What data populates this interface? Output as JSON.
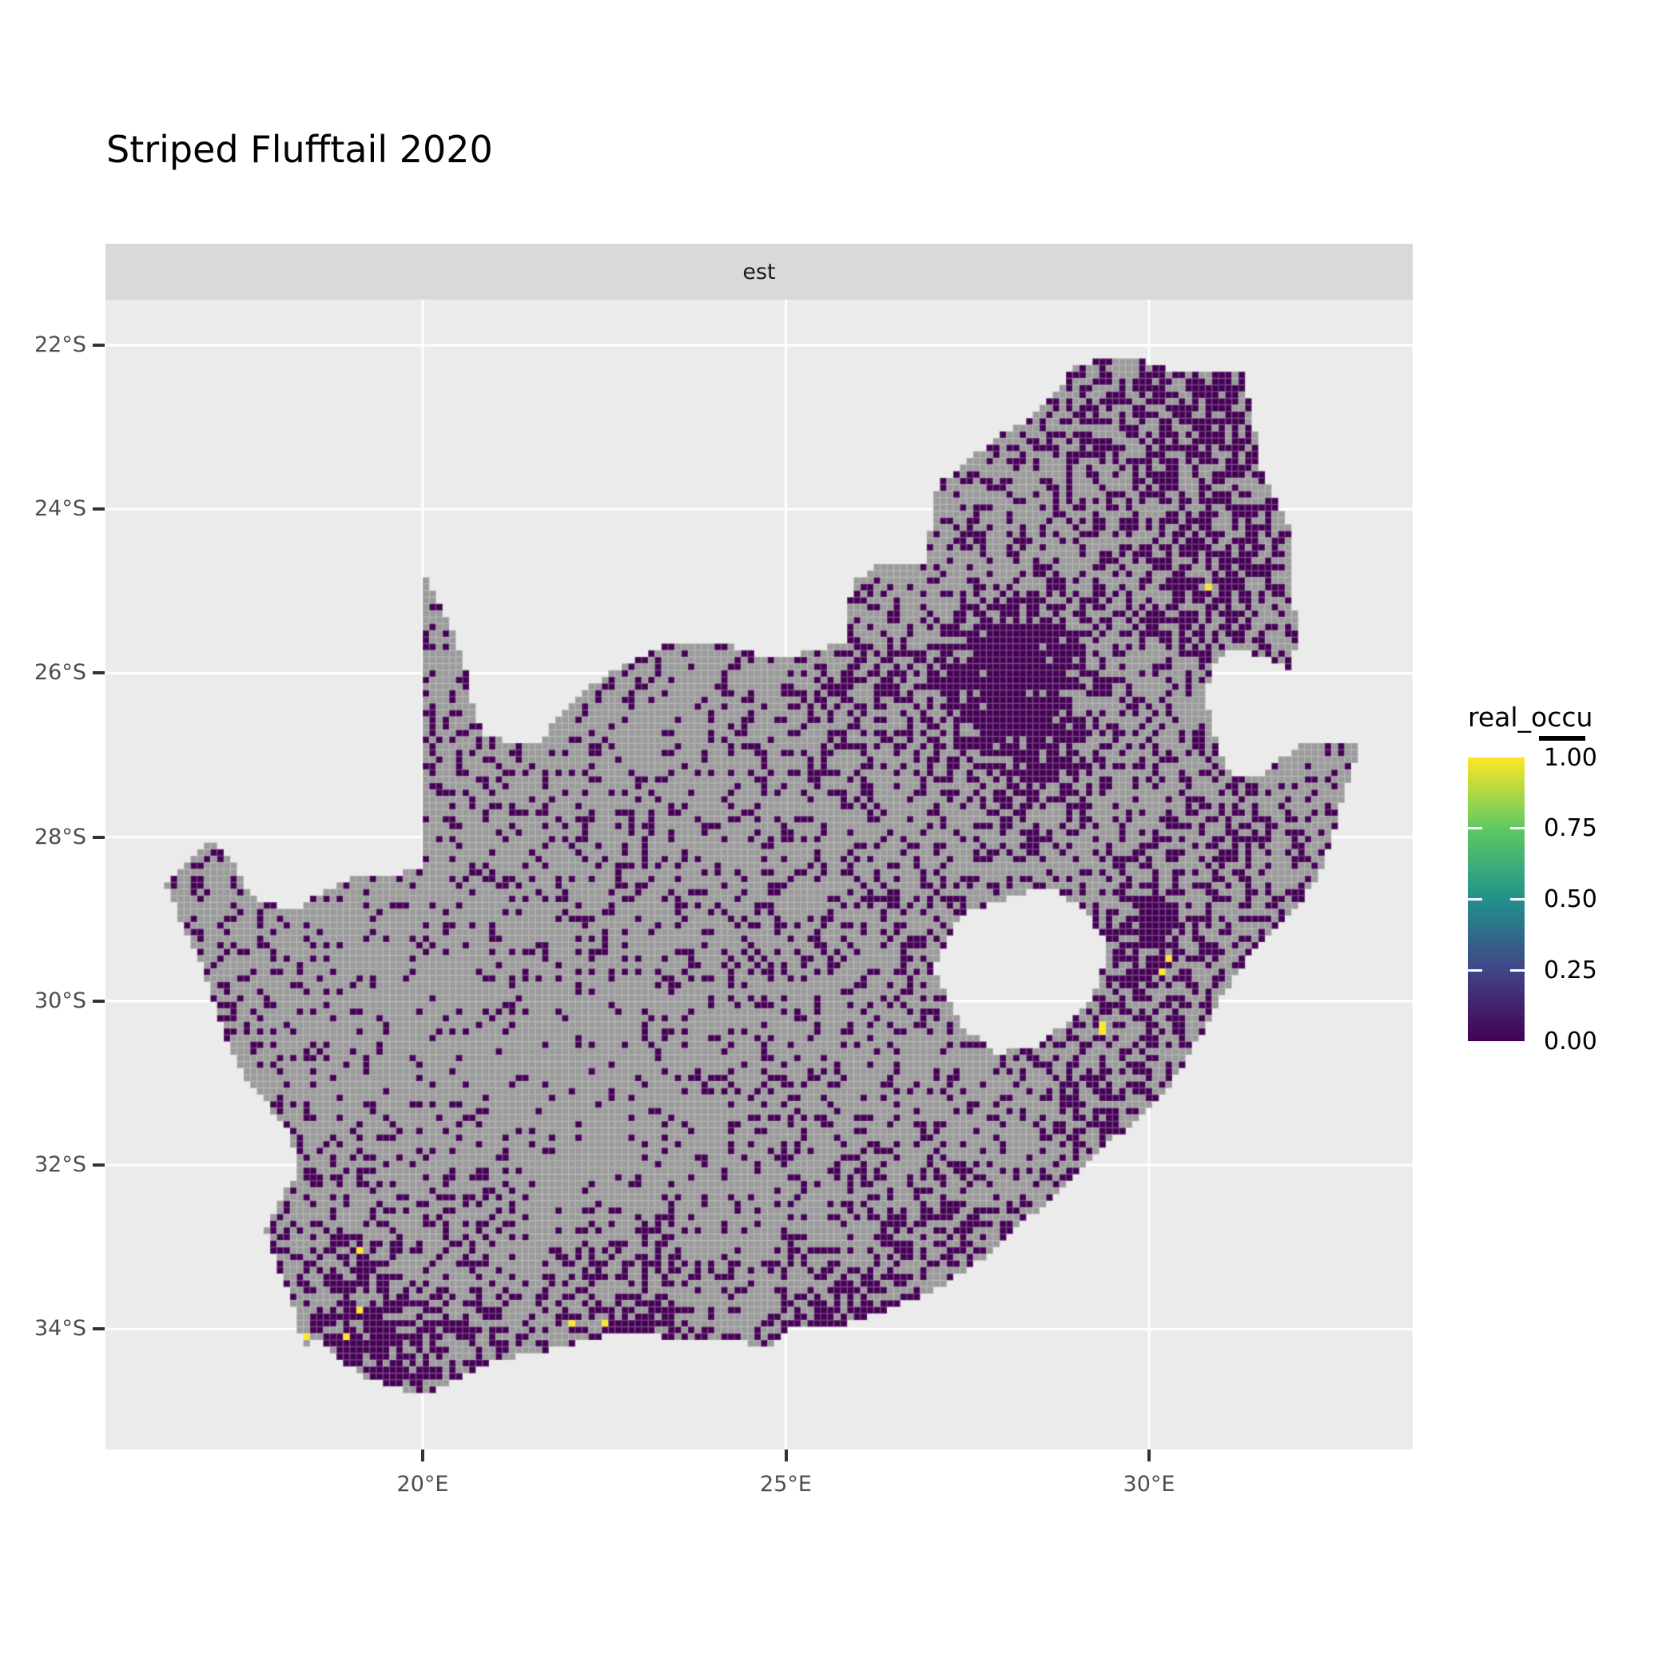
{
  "page": {
    "title": "Striped Flufftail 2020",
    "background": "#ffffff"
  },
  "facet": {
    "label": "est"
  },
  "axes": {
    "y": {
      "ticks": [
        {
          "label": "22°S",
          "lat": -22
        },
        {
          "label": "24°S",
          "lat": -24
        },
        {
          "label": "26°S",
          "lat": -26
        },
        {
          "label": "28°S",
          "lat": -28
        },
        {
          "label": "30°S",
          "lat": -30
        },
        {
          "label": "32°S",
          "lat": -32
        },
        {
          "label": "34°S",
          "lat": -34
        }
      ]
    },
    "x": {
      "ticks": [
        {
          "label": "20°E",
          "lon": 20
        },
        {
          "label": "25°E",
          "lon": 25
        },
        {
          "label": "30°E",
          "lon": 30
        }
      ]
    }
  },
  "legend": {
    "title": "real_occu",
    "labels": [
      "1.00",
      "0.75",
      "0.50",
      "0.25",
      "0.00"
    ],
    "values": [
      1.0,
      0.75,
      0.5,
      0.25,
      0.0
    ],
    "tick_values": [
      0.75,
      0.5,
      0.25
    ]
  },
  "colors": {
    "panel_bg": "#ebebeb",
    "strip_bg": "#d9d9d9",
    "gridline": "#ffffff",
    "tick": "#333333",
    "axis_text": "#4d4d4d",
    "occu_0": "#440154",
    "occu_1": "#fde725",
    "na_cell": "#9b9b9b",
    "cell_edge": "rgba(255,255,255,0.16)",
    "viridis_stops": [
      "#440154",
      "#414487",
      "#21918c",
      "#5ec962",
      "#fde725"
    ]
  },
  "chart_data": {
    "type": "heatmap",
    "title": "Striped Flufftail 2020",
    "facet": "est",
    "legend_title": "real_occu",
    "value_range": [
      0,
      1
    ],
    "palette": "viridis",
    "grid": "major only, white",
    "extent": {
      "lon": [
        15.63,
        33.63
      ],
      "lat": [
        -35.47,
        -21.44
      ]
    },
    "cell_size_px": 8.3,
    "base_density": 0.22,
    "occupied_cells": [
      {
        "lon": 30.78,
        "lat": -24.92,
        "value": 1.0
      },
      {
        "lon": 30.27,
        "lat": -29.46,
        "value": 1.0
      },
      {
        "lon": 30.21,
        "lat": -29.62,
        "value": 1.0
      },
      {
        "lon": 29.22,
        "lat": -29.96,
        "value": 1.0
      },
      {
        "lon": 29.38,
        "lat": -30.26,
        "value": 1.0
      },
      {
        "lon": 29.38,
        "lat": -30.35,
        "value": 1.0
      },
      {
        "lon": 19.11,
        "lat": -33.08,
        "value": 1.0
      },
      {
        "lon": 19.13,
        "lat": -33.74,
        "value": 1.0
      },
      {
        "lon": 18.94,
        "lat": -34.06,
        "value": 1.0
      },
      {
        "lon": 18.36,
        "lat": -34.09,
        "value": 1.0
      },
      {
        "lon": 22.01,
        "lat": -33.93,
        "value": 1.0
      },
      {
        "lon": 22.52,
        "lat": -33.93,
        "value": 1.0
      }
    ],
    "outline": [
      [
        16.45,
        -28.58
      ],
      [
        16.8,
        -28.3
      ],
      [
        17.1,
        -28.05
      ],
      [
        17.4,
        -28.35
      ],
      [
        17.7,
        -28.77
      ],
      [
        18.2,
        -28.9
      ],
      [
        19.0,
        -28.5
      ],
      [
        19.6,
        -28.45
      ],
      [
        20.0,
        -28.38
      ],
      [
        20.0,
        -24.76
      ],
      [
        20.35,
        -25.35
      ],
      [
        20.6,
        -26.0
      ],
      [
        20.7,
        -26.45
      ],
      [
        20.9,
        -26.8
      ],
      [
        21.6,
        -26.85
      ],
      [
        22.05,
        -26.35
      ],
      [
        22.55,
        -26.0
      ],
      [
        22.9,
        -25.85
      ],
      [
        23.5,
        -25.6
      ],
      [
        24.2,
        -25.65
      ],
      [
        24.75,
        -25.82
      ],
      [
        25.35,
        -25.75
      ],
      [
        25.85,
        -25.6
      ],
      [
        25.9,
        -24.9
      ],
      [
        26.35,
        -24.63
      ],
      [
        26.9,
        -24.7
      ],
      [
        27.1,
        -23.7
      ],
      [
        27.95,
        -23.1
      ],
      [
        28.3,
        -22.95
      ],
      [
        29.05,
        -22.22
      ],
      [
        29.7,
        -22.15
      ],
      [
        30.3,
        -22.3
      ],
      [
        31.3,
        -22.35
      ],
      [
        31.55,
        -23.5
      ],
      [
        31.98,
        -24.3
      ],
      [
        32.02,
        -25.65
      ],
      [
        31.95,
        -25.96
      ],
      [
        31.3,
        -25.7
      ],
      [
        30.95,
        -25.8
      ],
      [
        30.78,
        -26.25
      ],
      [
        30.9,
        -26.78
      ],
      [
        31.1,
        -27.2
      ],
      [
        31.45,
        -27.3
      ],
      [
        32.1,
        -26.85
      ],
      [
        32.9,
        -26.85
      ],
      [
        32.65,
        -27.6
      ],
      [
        32.4,
        -28.35
      ],
      [
        32.1,
        -28.8
      ],
      [
        31.4,
        -29.4
      ],
      [
        31.05,
        -29.87
      ],
      [
        30.4,
        -30.9
      ],
      [
        30.0,
        -31.3
      ],
      [
        29.5,
        -31.7
      ],
      [
        28.8,
        -32.3
      ],
      [
        28.2,
        -32.75
      ],
      [
        27.9,
        -33.03
      ],
      [
        27.1,
        -33.5
      ],
      [
        26.4,
        -33.77
      ],
      [
        25.65,
        -34.0
      ],
      [
        25.0,
        -34.0
      ],
      [
        24.8,
        -34.2
      ],
      [
        23.4,
        -34.1
      ],
      [
        22.6,
        -34.05
      ],
      [
        22.2,
        -34.15
      ],
      [
        21.0,
        -34.4
      ],
      [
        20.0,
        -34.82
      ],
      [
        19.3,
        -34.62
      ],
      [
        18.85,
        -34.4
      ],
      [
        18.5,
        -34.1
      ],
      [
        18.33,
        -34.3
      ],
      [
        18.3,
        -33.9
      ],
      [
        17.95,
        -33.1
      ],
      [
        17.85,
        -32.8
      ],
      [
        18.25,
        -32.1
      ],
      [
        18.2,
        -31.6
      ],
      [
        17.6,
        -31.0
      ],
      [
        17.25,
        -30.35
      ],
      [
        16.9,
        -29.45
      ]
    ],
    "lesotho_hole": [
      [
        27.05,
        -29.6
      ],
      [
        27.3,
        -29.1
      ],
      [
        27.55,
        -28.9
      ],
      [
        28.15,
        -28.72
      ],
      [
        28.65,
        -28.6
      ],
      [
        29.1,
        -28.9
      ],
      [
        29.45,
        -29.3
      ],
      [
        29.3,
        -29.85
      ],
      [
        28.9,
        -30.25
      ],
      [
        28.35,
        -30.6
      ],
      [
        27.9,
        -30.62
      ],
      [
        27.4,
        -30.3
      ]
    ],
    "density_blobs": [
      [
        28.15,
        -26.15,
        1.05,
        0.9
      ],
      [
        26.0,
        -26.1,
        0.75,
        0.3
      ],
      [
        30.7,
        -24.9,
        0.95,
        0.5
      ],
      [
        31.1,
        -22.7,
        0.8,
        0.45
      ],
      [
        29.8,
        -23.2,
        1.2,
        0.3
      ],
      [
        30.0,
        -29.4,
        0.95,
        0.5
      ],
      [
        31.2,
        -28.0,
        0.8,
        0.3
      ],
      [
        29.3,
        -31.3,
        0.8,
        0.3
      ],
      [
        27.3,
        -32.9,
        0.8,
        0.35
      ],
      [
        25.7,
        -33.9,
        0.75,
        0.45
      ],
      [
        22.9,
        -34.0,
        0.9,
        0.5
      ],
      [
        19.2,
        -34.1,
        0.8,
        0.6
      ],
      [
        18.6,
        -32.9,
        0.6,
        0.25
      ],
      [
        20.6,
        -34.5,
        0.7,
        0.35
      ],
      [
        22.5,
        -31.3,
        1.6,
        -0.16
      ],
      [
        19.7,
        -29.9,
        1.6,
        -0.13
      ],
      [
        22.8,
        -26.9,
        1.4,
        -0.07
      ],
      [
        26.7,
        -28.9,
        1.2,
        0.08
      ],
      [
        28.6,
        -27.3,
        0.8,
        0.25
      ]
    ]
  }
}
